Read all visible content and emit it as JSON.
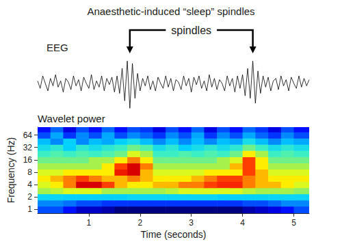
{
  "title": "Anaesthetic-induced “sleep” spindles",
  "chart_data": [
    {
      "type": "line",
      "title": "EEG",
      "color": "#000000",
      "tick_labels": false,
      "xlim": [
        0,
        5.3
      ],
      "ylim": [
        -1.1,
        1.1
      ],
      "annotations": [
        {
          "text": "spindles",
          "x": [
            1.8,
            4.2
          ]
        }
      ],
      "x": [
        0,
        0.05,
        0.1,
        0.15,
        0.2,
        0.25,
        0.3,
        0.35,
        0.4,
        0.45,
        0.5,
        0.55,
        0.6,
        0.65,
        0.7,
        0.75,
        0.8,
        0.85,
        0.9,
        0.95,
        1,
        1.05,
        1.1,
        1.15,
        1.2,
        1.25,
        1.3,
        1.35,
        1.4,
        1.45,
        1.5,
        1.55,
        1.6,
        1.65,
        1.7,
        1.75,
        1.8,
        1.85,
        1.9,
        1.95,
        2,
        2.05,
        2.1,
        2.15,
        2.2,
        2.25,
        2.3,
        2.35,
        2.4,
        2.45,
        2.5,
        2.55,
        2.6,
        2.65,
        2.7,
        2.75,
        2.8,
        2.85,
        2.9,
        2.95,
        3,
        3.05,
        3.1,
        3.15,
        3.2,
        3.25,
        3.3,
        3.35,
        3.4,
        3.45,
        3.5,
        3.55,
        3.6,
        3.65,
        3.7,
        3.75,
        3.8,
        3.85,
        3.9,
        3.95,
        4,
        4.05,
        4.1,
        4.15,
        4.2,
        4.25,
        4.3,
        4.35,
        4.4,
        4.45,
        4.5,
        4.55,
        4.6,
        4.65,
        4.7,
        4.75,
        4.8,
        4.85,
        4.9,
        4.95,
        5,
        5.05,
        5.1,
        5.15,
        5.2,
        5.25,
        5.3
      ],
      "values": [
        0.1,
        -0.2,
        0.3,
        0,
        -0.3,
        0.2,
        -0.1,
        0.35,
        -0.15,
        0.1,
        -0.35,
        0.2,
        0.05,
        -0.25,
        0.3,
        -0.1,
        0.15,
        -0.3,
        0.25,
        0,
        -0.2,
        0.35,
        -0.25,
        0.1,
        -0.15,
        0.3,
        -0.3,
        0.2,
        -0.05,
        0.25,
        -0.35,
        0.3,
        -0.4,
        0.6,
        -0.7,
        0.9,
        -1,
        0.8,
        -0.6,
        0.4,
        -0.3,
        0.2,
        -0.1,
        0.3,
        -0.25,
        0.1,
        -0.3,
        0.25,
        0,
        -0.2,
        0.3,
        -0.15,
        0.2,
        -0.3,
        0.15,
        0.05,
        -0.25,
        0.3,
        -0.1,
        0.2,
        -0.35,
        0.25,
        -0.05,
        0.3,
        -0.2,
        0.1,
        -0.3,
        0.35,
        -0.15,
        0.2,
        -0.25,
        0.15,
        0,
        -0.3,
        0.3,
        -0.1,
        0.2,
        -0.35,
        0.3,
        -0.2,
        0.35,
        -0.5,
        0.6,
        -0.6,
        0.9,
        -0.8,
        0.5,
        -0.4,
        0.3,
        -0.15,
        0.25,
        -0.3,
        0.1,
        0.2,
        -0.25,
        0.3,
        -0.1,
        0.15,
        -0.3,
        0.25,
        0,
        -0.2,
        0.3,
        -0.15,
        0.2,
        -0.1,
        0.15
      ]
    },
    {
      "type": "heatmap",
      "title": "Wavelet power",
      "x_label": "Time (seconds)",
      "y_label": "Frequency (Hz)",
      "log": "y",
      "xlim": [
        0,
        5.3
      ],
      "ylim": [
        0.8,
        100
      ],
      "xticks": [
        1,
        2,
        3,
        4,
        5
      ],
      "yticks": [
        1,
        2,
        4,
        8,
        16,
        32,
        64
      ],
      "x_edges": [
        0,
        0.25,
        0.5,
        0.75,
        1,
        1.25,
        1.5,
        1.75,
        2,
        2.25,
        2.5,
        2.75,
        3,
        3.25,
        3.5,
        3.75,
        4,
        4.25,
        4.5,
        4.75,
        5,
        5.3
      ],
      "y_edges": [
        0.8,
        1.19,
        1.68,
        2.38,
        3.36,
        4.76,
        6.73,
        9.51,
        13.45,
        19.03,
        26.91,
        38.05,
        53.82,
        76.11,
        107.63
      ],
      "power": [
        [
          2,
          2,
          1.5,
          1,
          1,
          0.8,
          0.5,
          0.5,
          0.5,
          0.5,
          0.5,
          0.5,
          0.5,
          0.5,
          0.5,
          0.5,
          0.8,
          1,
          1.2,
          1.5,
          2
        ],
        [
          2.5,
          2.5,
          2.3,
          2,
          2,
          1.8,
          1.8,
          1.8,
          1.8,
          1.8,
          1.8,
          1.8,
          1.8,
          1.8,
          1.8,
          1.8,
          2,
          2,
          2.2,
          2.5,
          2.5
        ],
        [
          3.3,
          3.3,
          3.2,
          3.2,
          3.2,
          3.2,
          3.2,
          3.3,
          3.3,
          3.3,
          3.3,
          3.3,
          3.3,
          3.3,
          3.2,
          3.2,
          3.2,
          3.2,
          3.3,
          3.3,
          3.3
        ],
        [
          5,
          5.2,
          5.5,
          5.5,
          5.5,
          5,
          5,
          5,
          5,
          5,
          5.2,
          5.5,
          5.5,
          5.5,
          5.5,
          5.5,
          5.2,
          5,
          5,
          5,
          4.8
        ],
        [
          5.5,
          6,
          7,
          8.5,
          8.5,
          7.5,
          6.5,
          6,
          6,
          6.5,
          6.5,
          7,
          7,
          7.5,
          7.8,
          7.8,
          7,
          6.5,
          6.5,
          6,
          5.5
        ],
        [
          6,
          6.5,
          7,
          7.5,
          7,
          6.5,
          6.5,
          7,
          6.5,
          6,
          6,
          6,
          6.5,
          7,
          7.5,
          7.5,
          7,
          6.5,
          6,
          6,
          6
        ],
        [
          5.5,
          5.5,
          6,
          6,
          6,
          6,
          8,
          8.5,
          6.5,
          5.5,
          5.5,
          5.5,
          5.5,
          6,
          6,
          6,
          7.5,
          6.5,
          5.5,
          5.5,
          5.5
        ],
        [
          5,
          5,
          5,
          5,
          5,
          6,
          7.5,
          8.5,
          7,
          5,
          5,
          5,
          5,
          5,
          5,
          6.5,
          7.5,
          6,
          5,
          5,
          5
        ],
        [
          4.5,
          4.5,
          4.5,
          4.5,
          5,
          5,
          6,
          7,
          6,
          4.5,
          4.5,
          4.5,
          4.5,
          4.5,
          5,
          5.5,
          7.5,
          6,
          4.5,
          4.5,
          4.5
        ],
        [
          4,
          4.2,
          4,
          4.2,
          4,
          4.2,
          4.5,
          5.5,
          5,
          4,
          4,
          4.2,
          4,
          4.2,
          4,
          4.5,
          6,
          5,
          4,
          4.2,
          4
        ],
        [
          3.5,
          3.8,
          3.2,
          3.8,
          3.5,
          3.8,
          4,
          4.5,
          4.2,
          3.5,
          3.8,
          3.2,
          3.5,
          3.8,
          3.5,
          3.8,
          4.5,
          4,
          3.5,
          3.8,
          3.5
        ],
        [
          3,
          2.5,
          3.2,
          2.5,
          3,
          2.8,
          3.2,
          3.5,
          3,
          2.5,
          3,
          2.5,
          3,
          2.5,
          3,
          2.8,
          3.5,
          3,
          2.5,
          3,
          2.8
        ],
        [
          2,
          2.8,
          1.8,
          2.5,
          2,
          2.8,
          2,
          2.5,
          2.2,
          1.8,
          2.5,
          2,
          2.8,
          1.8,
          2.5,
          2,
          2.8,
          2.2,
          1.8,
          2.5,
          2
        ],
        [
          1.5,
          2.2,
          1.2,
          2,
          1.5,
          2.2,
          1.5,
          2,
          1.8,
          1.2,
          2,
          1.5,
          2.2,
          1.2,
          2,
          1.5,
          2.2,
          1.8,
          1.2,
          2,
          1.5
        ]
      ]
    }
  ]
}
